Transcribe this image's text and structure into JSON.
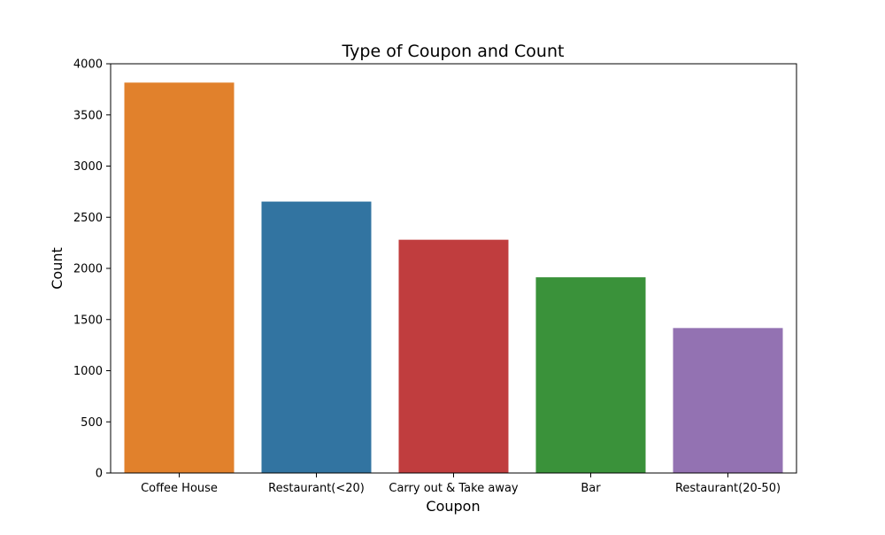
{
  "chart_data": {
    "type": "bar",
    "title": "Type of Coupon and Count",
    "xlabel": "Coupon",
    "ylabel": "Count",
    "categories": [
      "Coffee House",
      "Restaurant(<20)",
      "Carry out & Take away",
      "Bar",
      "Restaurant(20-50)"
    ],
    "values": [
      3816,
      2653,
      2280,
      1913,
      1417
    ],
    "colors": [
      "#e1812c",
      "#3274a1",
      "#c03d3e",
      "#3a923a",
      "#9372b2"
    ],
    "ylim": [
      0,
      4000
    ],
    "yticks": [
      0,
      500,
      1000,
      1500,
      2000,
      2500,
      3000,
      3500,
      4000
    ],
    "grid": false,
    "legend": "none"
  }
}
